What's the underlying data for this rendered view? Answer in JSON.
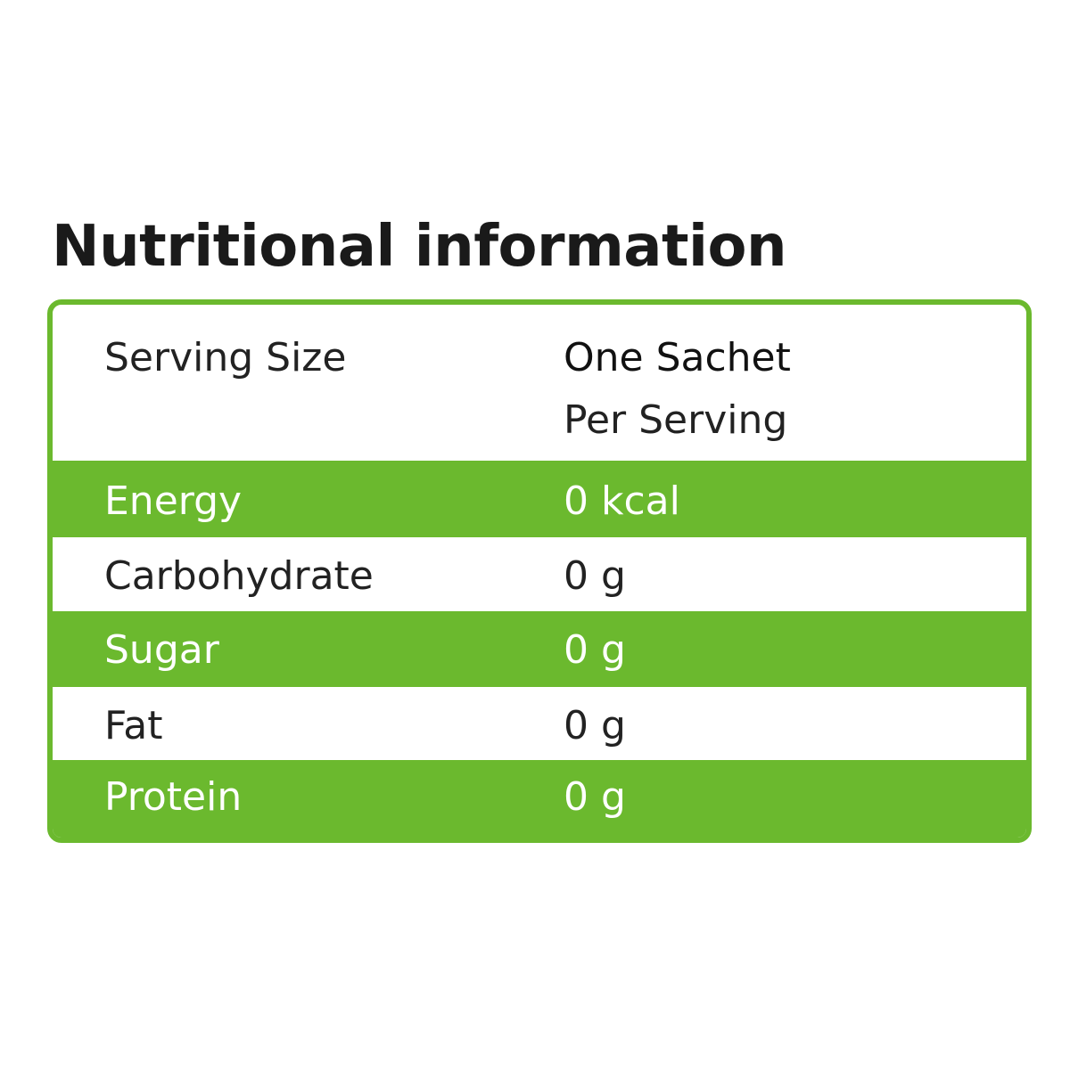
{
  "title": "Nutritional information",
  "colors": {
    "accent": "#6bb92e",
    "text": "#222222"
  },
  "header": {
    "label": "Serving Size",
    "value": "One Sachet",
    "subvalue": "Per Serving"
  },
  "rows": [
    {
      "label": "Energy",
      "value": "0 kcal"
    },
    {
      "label": "Carbohydrate",
      "value": "0 g"
    },
    {
      "label": "Sugar",
      "value": "0 g"
    },
    {
      "label": "Fat",
      "value": "0 g"
    },
    {
      "label": "Protein",
      "value": "0 g"
    }
  ]
}
